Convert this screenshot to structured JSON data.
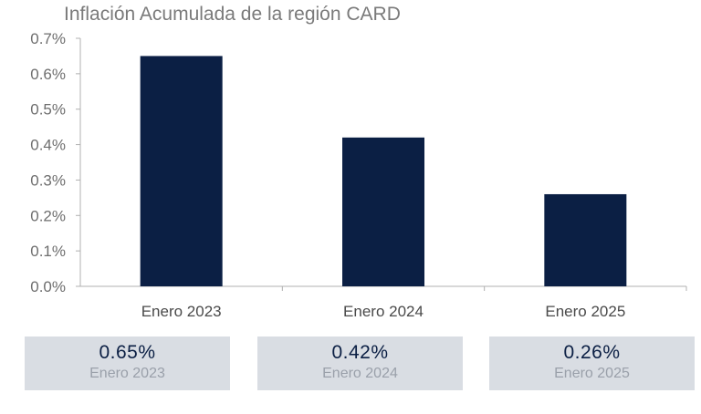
{
  "chart_data": {
    "type": "bar",
    "title": "Inflación Acumulada de la región CARD",
    "categories": [
      "Enero 2023",
      "Enero 2024",
      "Enero 2025"
    ],
    "values": [
      0.65,
      0.42,
      0.26
    ],
    "unit": "%",
    "ylim": [
      0,
      0.7
    ],
    "yticks": [
      "0.0%",
      "0.1%",
      "0.2%",
      "0.3%",
      "0.4%",
      "0.5%",
      "0.6%",
      "0.7%"
    ],
    "ytick_values": [
      0,
      0.1,
      0.2,
      0.3,
      0.4,
      0.5,
      0.6,
      0.7
    ],
    "grid": false,
    "bar_color": "#0b1f44"
  },
  "summary_cards": [
    {
      "value": "0.65%",
      "label": "Enero 2023"
    },
    {
      "value": "0.42%",
      "label": "Enero 2024"
    },
    {
      "value": "0.26%",
      "label": "Enero 2025"
    }
  ],
  "colors": {
    "bar": "#0b1f44",
    "card_background": "#d9dde3",
    "card_value_text": "#0b1f44",
    "card_label_text": "#9aa0aa",
    "axis": "#b0b0b0"
  }
}
